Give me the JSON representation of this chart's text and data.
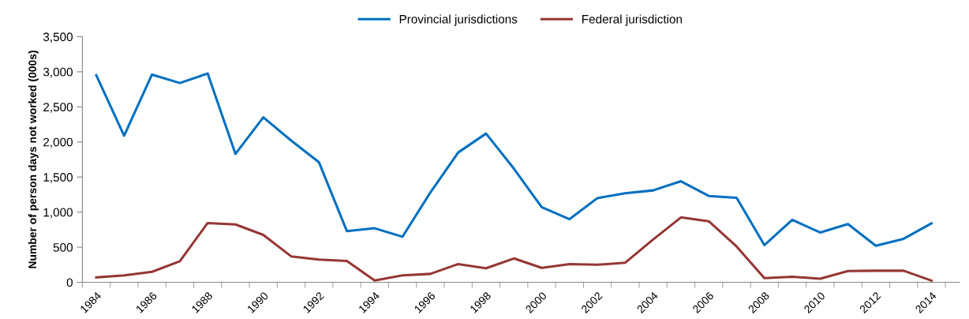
{
  "chart_data": {
    "type": "line",
    "ylabel": "Number of person days not worked (000s)",
    "categories": [
      "1984",
      null,
      "1986",
      null,
      "1988",
      null,
      "1990",
      null,
      "1992",
      null,
      "1994",
      null,
      "1996",
      null,
      "1998",
      null,
      "2000",
      null,
      "2002",
      null,
      "2004",
      null,
      "2006",
      null,
      "2008",
      null,
      "2010",
      null,
      "2012",
      null,
      "2014"
    ],
    "series": [
      {
        "name": "Provincial jurisdictions",
        "color": "#0070c0",
        "values": [
          2950,
          2090,
          2960,
          2840,
          2975,
          1830,
          2350,
          2020,
          1710,
          730,
          770,
          650,
          1280,
          1850,
          2120,
          1620,
          1070,
          900,
          1200,
          1270,
          1310,
          1440,
          1230,
          1205,
          530,
          890,
          710,
          830,
          520,
          620,
          840
        ]
      },
      {
        "name": "Federal jurisdiction",
        "color": "#953735",
        "values": [
          70,
          100,
          150,
          300,
          845,
          825,
          675,
          370,
          325,
          305,
          25,
          100,
          120,
          260,
          200,
          340,
          205,
          260,
          250,
          280,
          610,
          925,
          870,
          510,
          60,
          80,
          50,
          160,
          165,
          165,
          25
        ]
      }
    ],
    "ylim": [
      0,
      3500
    ],
    "yticks": [
      {
        "value": 0,
        "label": "0"
      },
      {
        "value": 500,
        "label": "500"
      },
      {
        "value": 1000,
        "label": "1,000"
      },
      {
        "value": 1500,
        "label": "1,500"
      },
      {
        "value": 2000,
        "label": "2,000"
      },
      {
        "value": 2500,
        "label": "2,500"
      },
      {
        "value": 3000,
        "label": "3,000"
      },
      {
        "value": 3500,
        "label": "3,500"
      }
    ],
    "legend": "top",
    "grid": false,
    "marker": "none",
    "line_style": "solid"
  }
}
